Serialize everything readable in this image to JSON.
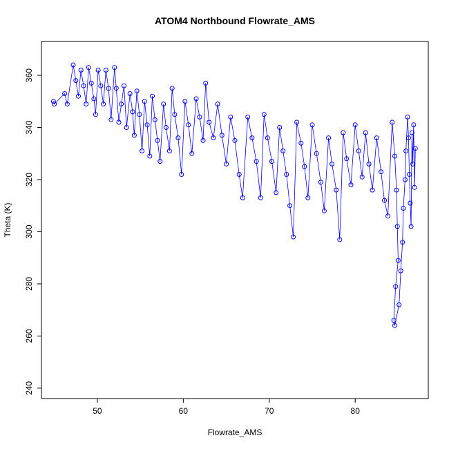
{
  "chart_data": {
    "type": "scatter",
    "title": "ATOM4 Northbound Flowrate_AMS",
    "xlabel": "Flowrate_AMS",
    "ylabel": "Theta (K)",
    "xlim": [
      43.5,
      88.5
    ],
    "ylim": [
      236,
      373
    ],
    "xticks": [
      50,
      60,
      70,
      80
    ],
    "yticks": [
      240,
      260,
      280,
      300,
      320,
      340,
      360
    ],
    "grid": false,
    "legend": "none",
    "color": "#0000ff",
    "series": [
      {
        "points": [
          [
            44.9,
            350
          ],
          [
            45.0,
            349
          ],
          [
            46.2,
            353
          ],
          [
            46.5,
            349
          ],
          [
            47.2,
            364
          ],
          [
            47.5,
            358
          ],
          [
            47.8,
            352
          ],
          [
            48.1,
            362
          ],
          [
            48.4,
            356
          ],
          [
            48.7,
            349
          ],
          [
            49.0,
            363
          ],
          [
            49.3,
            357
          ],
          [
            49.6,
            351
          ],
          [
            49.8,
            345
          ],
          [
            50.1,
            362
          ],
          [
            50.4,
            356
          ],
          [
            50.7,
            349
          ],
          [
            51.0,
            362
          ],
          [
            51.3,
            355
          ],
          [
            51.6,
            343
          ],
          [
            52.0,
            363
          ],
          [
            52.2,
            355
          ],
          [
            52.5,
            342
          ],
          [
            52.8,
            349
          ],
          [
            53.1,
            356
          ],
          [
            53.4,
            340
          ],
          [
            53.8,
            353
          ],
          [
            54.1,
            346
          ],
          [
            54.3,
            337
          ],
          [
            54.6,
            354
          ],
          [
            54.9,
            345
          ],
          [
            55.2,
            331
          ],
          [
            55.5,
            350
          ],
          [
            55.8,
            341
          ],
          [
            56.1,
            329
          ],
          [
            56.4,
            352
          ],
          [
            56.7,
            343
          ],
          [
            57.0,
            335
          ],
          [
            57.3,
            327
          ],
          [
            57.7,
            349
          ],
          [
            58.0,
            340
          ],
          [
            58.4,
            331
          ],
          [
            58.7,
            355
          ],
          [
            59.0,
            345
          ],
          [
            59.4,
            336
          ],
          [
            59.8,
            322
          ],
          [
            60.2,
            350
          ],
          [
            60.6,
            341
          ],
          [
            61.0,
            330
          ],
          [
            61.5,
            351
          ],
          [
            61.9,
            344
          ],
          [
            62.3,
            335
          ],
          [
            62.6,
            357
          ],
          [
            63.0,
            342
          ],
          [
            63.5,
            336
          ],
          [
            64.0,
            349
          ],
          [
            64.5,
            337
          ],
          [
            65.0,
            326
          ],
          [
            65.5,
            344
          ],
          [
            66.0,
            335
          ],
          [
            66.5,
            322
          ],
          [
            66.9,
            313
          ],
          [
            67.5,
            344
          ],
          [
            68.0,
            336
          ],
          [
            68.5,
            327
          ],
          [
            69.0,
            313
          ],
          [
            69.4,
            345
          ],
          [
            69.8,
            336
          ],
          [
            70.3,
            327
          ],
          [
            70.8,
            315
          ],
          [
            71.2,
            340
          ],
          [
            71.6,
            331
          ],
          [
            72.0,
            322
          ],
          [
            72.4,
            310
          ],
          [
            72.8,
            298
          ],
          [
            73.2,
            342
          ],
          [
            73.7,
            334
          ],
          [
            74.1,
            325
          ],
          [
            74.5,
            313
          ],
          [
            75.0,
            341
          ],
          [
            75.5,
            330
          ],
          [
            76.0,
            319
          ],
          [
            76.4,
            308
          ],
          [
            76.9,
            336
          ],
          [
            77.3,
            326
          ],
          [
            77.8,
            316
          ],
          [
            78.2,
            297
          ],
          [
            78.6,
            338
          ],
          [
            79.0,
            328
          ],
          [
            79.5,
            318
          ],
          [
            80.0,
            341
          ],
          [
            80.4,
            331
          ],
          [
            80.8,
            321
          ],
          [
            81.2,
            338
          ],
          [
            81.6,
            326
          ],
          [
            82.0,
            316
          ],
          [
            82.5,
            336
          ],
          [
            83.0,
            323
          ],
          [
            83.4,
            312
          ],
          [
            83.8,
            306
          ],
          [
            84.3,
            342
          ],
          [
            84.6,
            329
          ],
          [
            84.8,
            316
          ],
          [
            84.9,
            302
          ],
          [
            85.0,
            289
          ],
          [
            84.7,
            279
          ],
          [
            84.5,
            266
          ],
          [
            84.6,
            264
          ],
          [
            85.1,
            272
          ],
          [
            85.3,
            285
          ],
          [
            85.5,
            296
          ],
          [
            85.6,
            309
          ],
          [
            85.8,
            320
          ],
          [
            85.9,
            331
          ],
          [
            86.1,
            344
          ],
          [
            86.2,
            336
          ],
          [
            86.3,
            322
          ],
          [
            86.4,
            311
          ],
          [
            86.5,
            302
          ],
          [
            86.6,
            338
          ],
          [
            86.7,
            326
          ],
          [
            86.8,
            341
          ],
          [
            86.9,
            317
          ],
          [
            87.0,
            332
          ]
        ]
      }
    ]
  }
}
